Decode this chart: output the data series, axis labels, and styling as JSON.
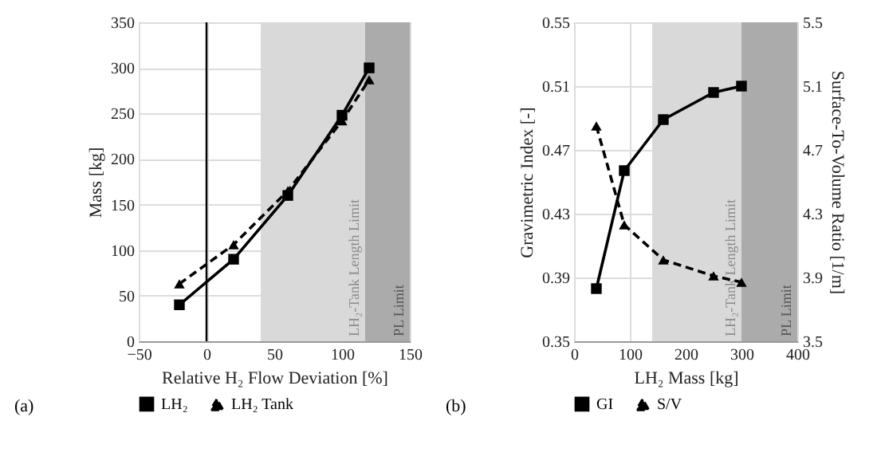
{
  "chart_data": [
    {
      "type": "line",
      "xlabel": "Relative H₂ Flow Deviation [%]",
      "ylabel": "Mass [kg]",
      "x": [
        -20,
        20,
        60,
        100,
        120
      ],
      "series": [
        {
          "name": "LH₂",
          "color": "#000000",
          "values": [
            40,
            90,
            160,
            248,
            300
          ],
          "marker": "square",
          "line_style": "solid"
        },
        {
          "name": "LH₂ Tank",
          "color": "#000000",
          "values": [
            63,
            106,
            165,
            242,
            287
          ],
          "marker": "triangle",
          "line_style": "dashed"
        }
      ],
      "xlim": [
        -50,
        150
      ],
      "xticks": [
        -50,
        0,
        50,
        100,
        150
      ],
      "ylim": [
        0,
        350
      ],
      "yticks": [
        0,
        50,
        100,
        150,
        200,
        250,
        300,
        350
      ],
      "grid": true,
      "legend": "bottom",
      "ref_lines": [
        {
          "axis": "x",
          "value": 0,
          "color": "#000000"
        }
      ],
      "bands": [
        {
          "axis": "x",
          "from": 40,
          "to": 117,
          "label": "LH₂-Tank Length Limit",
          "color": "#d9d9d9"
        },
        {
          "axis": "x",
          "from": 117,
          "to": 150,
          "label": "PL Limit",
          "color": "#ababab"
        }
      ],
      "annotations": [
        "(a)"
      ]
    },
    {
      "type": "line",
      "xlabel": "LH₂ Mass [kg]",
      "ylabel": "Gravimetric Index [-]",
      "y2label": "Surface-To-Volume Ratio [1/m]",
      "x": [
        40,
        90,
        160,
        250,
        300
      ],
      "series": [
        {
          "name": "GI",
          "color": "#000000",
          "values": [
            0.383,
            0.457,
            0.489,
            0.506,
            0.51
          ],
          "marker": "square",
          "line_style": "solid"
        },
        {
          "name": "S/V",
          "color": "#000000",
          "values": [
            4.85,
            4.23,
            4.01,
            3.91,
            3.87
          ],
          "marker": "triangle",
          "line_style": "dashed",
          "axis": "y2"
        }
      ],
      "xlim": [
        0,
        400
      ],
      "xticks": [
        0,
        100,
        200,
        300,
        400
      ],
      "ylim": [
        0.35,
        0.55
      ],
      "yticks": [
        0.35,
        0.39,
        0.43,
        0.47,
        0.51,
        0.55
      ],
      "y2lim": [
        3.5,
        5.5
      ],
      "y2ticks": [
        3.5,
        3.9,
        4.3,
        4.7,
        5.1,
        5.5
      ],
      "grid": true,
      "legend": "bottom",
      "bands": [
        {
          "axis": "x",
          "from": 140,
          "to": 300,
          "label": "LH₂-Tank Length Limit",
          "color": "#d9d9d9"
        },
        {
          "axis": "x",
          "from": 300,
          "to": 400,
          "label": "PL Limit",
          "color": "#ababab"
        }
      ],
      "annotations": [
        "(b)"
      ]
    }
  ]
}
